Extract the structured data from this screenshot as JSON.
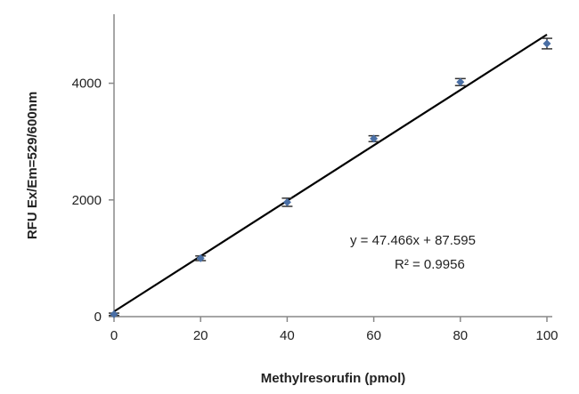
{
  "chart_data": {
    "type": "scatter",
    "xlabel": "Methylresorufin (pmol)",
    "ylabel": "RFU Ex/Em=529/600nm",
    "xlim": [
      0,
      100
    ],
    "ylim": [
      0,
      5000
    ],
    "x_ticks": [
      "0",
      "20",
      "40",
      "60",
      "80",
      "100"
    ],
    "y_ticks": [
      "0",
      "2000",
      "4000"
    ],
    "grid": false,
    "series": [
      {
        "x": [
          0,
          20,
          40,
          60,
          80,
          100
        ],
        "y": [
          40,
          1000,
          1960,
          3050,
          4020,
          4680
        ],
        "error": [
          20,
          40,
          70,
          50,
          60,
          90
        ],
        "color": "#4a6fa5"
      }
    ],
    "trendline": {
      "slope": 47.466,
      "intercept": 87.595,
      "x_range": [
        0,
        100
      ],
      "color": "#000000"
    },
    "annotations": [
      "y = 47.466x + 87.595",
      "R² = 0.9956"
    ]
  }
}
